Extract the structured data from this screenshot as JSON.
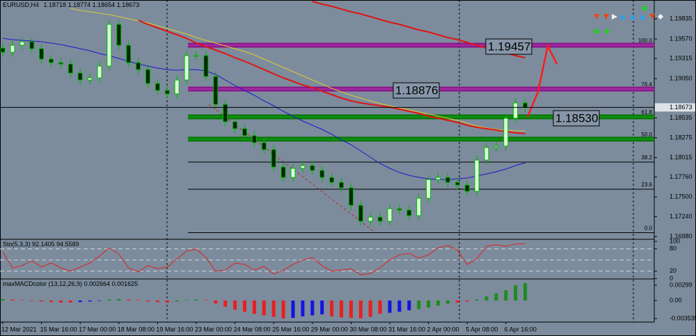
{
  "chart_data": [
    {
      "type": "candlestick",
      "symbol": "EURUSD,H4",
      "header_values": [
        1.18718,
        1.18774,
        1.18654,
        1.18673
      ],
      "categories": [
        "12 Mar 2021",
        null,
        null,
        null,
        "15 Mar 16:00",
        null,
        null,
        null,
        "17 Mar 00:00",
        null,
        null,
        null,
        "18 Mar 08:00",
        null,
        null,
        null,
        "19 Mar 16:00",
        null,
        null,
        null,
        "23 Mar 00:00",
        null,
        null,
        null,
        "24 Mar 08:00",
        null,
        null,
        null,
        "25 Mar 16:00",
        null,
        null,
        null,
        "29 Mar 00:00",
        null,
        null,
        null,
        "30 Mar 08:00",
        null,
        null,
        null,
        "31 Mar 16:00",
        null,
        null,
        null,
        "2 Apr 00:00",
        null,
        null,
        null,
        "5 Apr 08:00",
        null,
        null,
        null,
        "6 Apr 16:00",
        null,
        null
      ],
      "open": [
        1.1945,
        1.19397,
        1.19488,
        1.19534,
        1.19443,
        1.19306,
        1.1926,
        1.19242,
        1.19124,
        1.19032,
        1.1906,
        1.19215,
        1.19762,
        1.19488,
        1.1926,
        1.19169,
        1.18987,
        1.18896,
        1.1885,
        1.19032,
        1.19352,
        1.19352,
        1.19078,
        1.18713,
        1.18485,
        1.18394,
        1.18303,
        1.18211,
        1.1812,
        1.17892,
        1.17755,
        1.17874,
        1.1791,
        1.17847,
        1.17755,
        1.17691,
        1.17619,
        1.1739,
        1.17181,
        1.17235,
        1.17181,
        1.17345,
        1.17327,
        1.17254,
        1.17482,
        1.17728,
        1.17755,
        1.17691,
        1.17655,
        1.17573,
        1.17983,
        1.18148,
        1.18166,
        1.18531,
        1.18731
      ],
      "high": [
        1.1951,
        1.19548,
        1.19594,
        1.19594,
        1.19503,
        1.19366,
        1.1932,
        1.19302,
        1.19184,
        1.1912,
        1.19275,
        1.19822,
        1.19822,
        1.19548,
        1.1932,
        1.19229,
        1.19047,
        1.18956,
        1.19092,
        1.19412,
        1.19412,
        1.19412,
        1.19138,
        1.18773,
        1.18545,
        1.18454,
        1.18363,
        1.18271,
        1.1818,
        1.17952,
        1.17934,
        1.1797,
        1.1797,
        1.17907,
        1.17815,
        1.17751,
        1.17679,
        1.1745,
        1.17295,
        1.17295,
        1.17405,
        1.17405,
        1.17387,
        1.17542,
        1.17788,
        1.17815,
        1.17815,
        1.17751,
        1.17715,
        1.18043,
        1.18208,
        1.18226,
        1.18591,
        1.18791,
        1.18791
      ],
      "low": [
        1.19337,
        1.19337,
        1.19428,
        1.19383,
        1.19246,
        1.192,
        1.19182,
        1.19064,
        1.18972,
        1.18972,
        1.19,
        1.19155,
        1.19428,
        1.192,
        1.19109,
        1.18927,
        1.18836,
        1.1879,
        1.1879,
        1.18972,
        1.19292,
        1.19018,
        1.18653,
        1.18425,
        1.18334,
        1.18243,
        1.18151,
        1.1806,
        1.17832,
        1.17695,
        1.17695,
        1.17814,
        1.17787,
        1.17695,
        1.17631,
        1.17559,
        1.1733,
        1.17121,
        1.17121,
        1.17121,
        1.17121,
        1.17267,
        1.17194,
        1.17194,
        1.17422,
        1.17668,
        1.17631,
        1.17595,
        1.17513,
        1.17513,
        1.17923,
        1.18088,
        1.18106,
        1.18471,
        1.18613
      ],
      "close": [
        1.19397,
        1.19488,
        1.19534,
        1.19443,
        1.19306,
        1.1926,
        1.19242,
        1.19124,
        1.19032,
        1.1906,
        1.19215,
        1.19762,
        1.19488,
        1.1926,
        1.19169,
        1.18987,
        1.18896,
        1.1885,
        1.19032,
        1.19352,
        1.19352,
        1.19078,
        1.18713,
        1.18485,
        1.18394,
        1.18303,
        1.18211,
        1.1812,
        1.17892,
        1.17755,
        1.17874,
        1.1791,
        1.17847,
        1.17755,
        1.17691,
        1.17619,
        1.1739,
        1.17181,
        1.17235,
        1.17181,
        1.17345,
        1.17327,
        1.17254,
        1.17482,
        1.17728,
        1.17755,
        1.17691,
        1.17655,
        1.17573,
        1.17983,
        1.18148,
        1.18166,
        1.18531,
        1.18731,
        1.18673
      ],
      "up_color": "#d8ffd8",
      "down_color": "#002800",
      "wick_color": "#00b400",
      "overlays": [
        {
          "color": "#1a1ac8",
          "values": [
            1.1958,
            1.19561,
            1.19552,
            1.19543,
            1.19534,
            1.19516,
            1.19498,
            1.1947,
            1.19443,
            1.19416,
            1.19379,
            1.19352,
            1.19315,
            1.19279,
            1.19242,
            1.19215,
            1.19188,
            1.19169,
            1.1916,
            1.19169,
            1.19169,
            1.19151,
            1.19105,
            1.19032,
            1.1896,
            1.18896,
            1.18832,
            1.18759,
            1.18695,
            1.18622,
            1.18558,
            1.18494,
            1.1844,
            1.18385,
            1.18321,
            1.18248,
            1.18184,
            1.18102,
            1.1802,
            1.17938,
            1.17874,
            1.1782,
            1.17783,
            1.17756,
            1.17737,
            1.17728,
            1.17728,
            1.17737,
            1.17747,
            1.17774,
            1.17801,
            1.17829,
            1.17865,
            1.17911,
            1.17947
          ]
        },
        {
          "color": "#e0c830",
          "values": [
            null,
            null,
            null,
            null,
            null,
            null,
            null,
            1.19972,
            1.19944,
            1.19926,
            1.19908,
            1.1989,
            1.19862,
            1.19835,
            1.19808,
            1.1978,
            1.19744,
            1.19707,
            1.19671,
            1.19634,
            1.19589,
            1.19552,
            1.19516,
            1.19479,
            1.19443,
            1.19406,
            1.19361,
            1.19306,
            1.19251,
            1.19197,
            1.19142,
            1.19087,
            1.19032,
            1.18978,
            1.18923,
            1.18877,
            1.18832,
            1.18795,
            1.18759,
            1.18722,
            1.18695,
            1.18668,
            1.1864,
            1.18613,
            1.18586,
            1.18558,
            1.18531,
            1.18503,
            1.18467,
            1.1843,
            1.18403,
            1.18385,
            1.18376,
            1.18367,
            1.18367
          ]
        },
        {
          "color": "#e01414",
          "values": [
            null,
            null,
            null,
            null,
            null,
            null,
            null,
            null,
            null,
            null,
            null,
            null,
            null,
            null,
            1.19817,
            1.19762,
            1.19716,
            1.19671,
            1.19625,
            1.1958,
            1.19516,
            1.1947,
            1.19425,
            1.19379,
            1.19324,
            1.19279,
            1.19224,
            1.19169,
            1.19114,
            1.1906,
            1.19014,
            1.18968,
            1.18932,
            1.18886,
            1.18841,
            1.18795,
            1.18759,
            1.18731,
            1.18713,
            1.18695,
            1.18677,
            1.18649,
            1.18622,
            1.18595,
            1.18558,
            1.18531,
            1.18503,
            1.18476,
            1.1844,
            1.18412,
            1.18394,
            1.18376,
            1.18357,
            1.18339,
            1.1833
          ]
        },
        {
          "color": "#e01414",
          "values": [
            null,
            null,
            null,
            null,
            null,
            null,
            null,
            null,
            null,
            null,
            null,
            null,
            null,
            null,
            null,
            null,
            null,
            null,
            null,
            null,
            null,
            null,
            null,
            null,
            null,
            null,
            null,
            null,
            null,
            null,
            null,
            null,
            1.20063,
            1.20027,
            1.19999,
            1.19963,
            1.19926,
            1.19899,
            1.19862,
            1.19826,
            1.19789,
            1.19762,
            1.19726,
            1.19689,
            1.19662,
            1.19625,
            1.19589,
            1.19561,
            1.19525,
            1.19488,
            1.19452,
            1.19425,
            1.19388,
            1.19352,
            1.19324
          ]
        }
      ],
      "fib_levels": [
        {
          "label": "100.0",
          "value": 1.19488,
          "color": "#8a1a8a"
        },
        {
          "label": "76.4",
          "value": 1.18914,
          "color": "#8a1a8a"
        },
        {
          "label": "61.8",
          "value": 1.18549,
          "color": "#087808"
        },
        {
          "label": "50.0",
          "value": 1.18257,
          "color": "#087808"
        },
        {
          "label": "38.2",
          "value": 1.17956,
          "color": "#000000"
        },
        {
          "label": "23.6",
          "value": 1.176,
          "color": "#000000"
        },
        {
          "label": "0.0",
          "value": 1.1703,
          "color": "#000000"
        }
      ],
      "annotations": [
        "1.19457",
        "1.18876",
        "1.18530"
      ],
      "ylim": [
        1.16953,
        1.20063
      ],
      "yticks": [
        1.19835,
        {
          "value": 1.1957,
          "label": "1.19570"
        },
        1.19315,
        {
          "value": 1.1905,
          "label": "1.19050"
        },
        1.18535,
        1.18275,
        1.18015,
        {
          "value": 1.1776,
          "label": "1.17760"
        },
        {
          "value": 1.175,
          "label": "1.17500"
        },
        {
          "value": 1.1724,
          "label": "1.17240"
        },
        {
          "value": 1.1698,
          "label": "1.16980"
        }
      ]
    },
    {
      "type": "line",
      "title": "Sto(5,3,3)",
      "header_values": [
        92.1405,
        94.5589
      ],
      "color": "#e02020",
      "values": [
        72,
        29,
        35,
        48,
        31,
        42,
        29,
        20,
        31,
        42,
        61,
        83,
        66,
        29,
        18,
        35,
        27,
        31,
        53,
        74,
        79,
        57,
        20,
        23,
        42,
        38,
        23,
        33,
        12,
        23,
        38,
        50,
        57,
        35,
        20,
        23,
        27,
        10,
        14,
        29,
        50,
        64,
        68,
        55,
        64,
        83,
        89,
        76,
        38,
        53,
        87,
        91,
        87,
        93,
        94
      ],
      "levels": [
        80,
        50,
        20
      ],
      "ylim": [
        0,
        100
      ],
      "yticks": [
        100,
        80,
        20,
        0
      ]
    },
    {
      "type": "bar",
      "title": "maxMACDcolor (13,12,26,9)",
      "header_values": [
        0.002664,
        0.001625
      ],
      "values": [
        0.0003,
        0.0002,
        0.0001,
        -0.0001,
        -0.0002,
        -0.0003,
        -0.0004,
        -0.0004,
        -0.0003,
        -0.0002,
        -0.0001,
        0.0002,
        0.0003,
        0.0002,
        0.0001,
        -0.0002,
        -0.0003,
        -0.0004,
        -0.0002,
        0.0001,
        0.0002,
        0.0001,
        -0.0006,
        -0.0012,
        -0.0018,
        -0.0022,
        -0.0026,
        -0.0029,
        -0.0032,
        -0.0035,
        -0.0034,
        -0.0031,
        -0.0029,
        -0.0027,
        -0.0031,
        -0.0033,
        -0.0034,
        -0.0035,
        -0.0032,
        -0.0026,
        -0.0024,
        -0.0022,
        -0.0019,
        -0.0017,
        -0.0014,
        -0.001,
        -0.0006,
        -0.0004,
        -0.0002,
        0.0002,
        0.0008,
        0.0014,
        0.002,
        0.003,
        0.0034
      ],
      "colors": [
        "#1e8c1e",
        "#e82020",
        "#e82020",
        "#e82020",
        "#e82020",
        "#e82020",
        "#e82020",
        "#e82020",
        "#1414e0",
        "#1414e0",
        "#1414e0",
        "#1e8c1e",
        "#1e8c1e",
        "#e82020",
        "#e82020",
        "#e82020",
        "#e82020",
        "#e82020",
        "#1e8c1e",
        "#1e8c1e",
        "#1e8c1e",
        "#e82020",
        "#e82020",
        "#e82020",
        "#e82020",
        "#e82020",
        "#e82020",
        "#e82020",
        "#e82020",
        "#e82020",
        "#1414e0",
        "#1414e0",
        "#1414e0",
        "#1414e0",
        "#e82020",
        "#e82020",
        "#e82020",
        "#e82020",
        "#e82020",
        "#e82020",
        "#1414e0",
        "#1414e0",
        "#1414e0",
        "#1e8c1e",
        "#1e8c1e",
        "#1e8c1e",
        "#1e8c1e",
        "#e82020",
        "#e82020",
        "#1e8c1e",
        "#1e8c1e",
        "#1e8c1e",
        "#1e8c1e",
        "#1e8c1e",
        "#1e8c1e"
      ],
      "ylim": [
        -0.00408,
        0.00394
      ],
      "yticks": [
        0.00299,
        {
          "value": 0,
          "label": "0.00"
        },
        -0.003535
      ]
    }
  ]
}
